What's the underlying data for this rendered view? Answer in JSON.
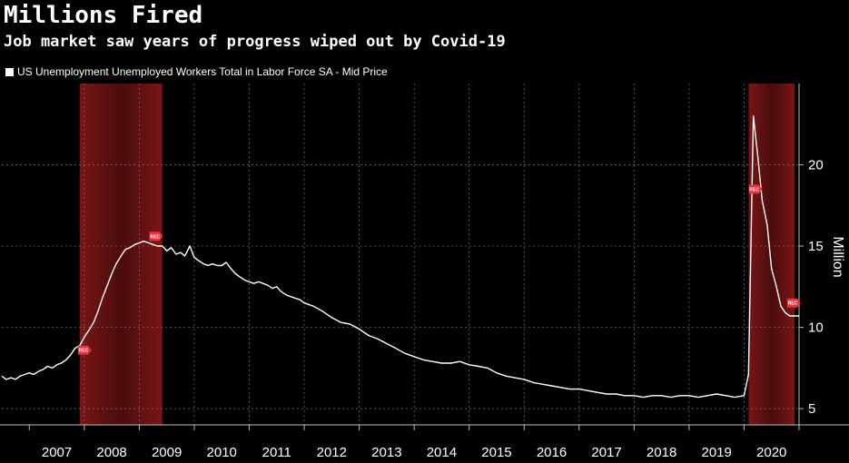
{
  "chart_data": {
    "type": "line",
    "title": "Millions Fired",
    "subtitle": "Job market saw years of progress wiped out by Covid-19",
    "ylabel": "Million",
    "ylim": [
      4,
      25
    ],
    "yticks": [
      5,
      10,
      15,
      20
    ],
    "xlim": [
      2006.5,
      2021.0
    ],
    "x_categories": [
      "2007",
      "2008",
      "2009",
      "2010",
      "2011",
      "2012",
      "2013",
      "2014",
      "2015",
      "2016",
      "2017",
      "2018",
      "2019",
      "2020"
    ],
    "grid": true,
    "legend": "top-left",
    "colors": {
      "line": "#ffffff",
      "recession": "#7a1a1a",
      "rec_marker": "#e8323c",
      "background": "#000000"
    },
    "recessions": [
      {
        "start": 2007.917,
        "end": 2009.417
      },
      {
        "start": 2020.083,
        "end": 2020.917
      }
    ],
    "rec_markers": [
      {
        "x": 2008.0,
        "y": 8.6,
        "label": "REC"
      },
      {
        "x": 2009.3,
        "y": 15.6,
        "label": "REC"
      },
      {
        "x": 2020.2,
        "y": 18.5,
        "label": "REC"
      },
      {
        "x": 2020.9,
        "y": 11.5,
        "label": "REC"
      }
    ],
    "series": [
      {
        "name": "US Unemployment Unemployed Workers Total in Labor Force SA - Mid Price",
        "x": [
          2006.5,
          2006.58,
          2006.67,
          2006.75,
          2006.83,
          2006.92,
          2007.0,
          2007.08,
          2007.17,
          2007.25,
          2007.33,
          2007.42,
          2007.5,
          2007.58,
          2007.67,
          2007.75,
          2007.83,
          2007.92,
          2008.0,
          2008.08,
          2008.17,
          2008.25,
          2008.33,
          2008.42,
          2008.5,
          2008.58,
          2008.67,
          2008.75,
          2008.83,
          2008.92,
          2009.0,
          2009.08,
          2009.17,
          2009.25,
          2009.33,
          2009.42,
          2009.5,
          2009.58,
          2009.67,
          2009.75,
          2009.83,
          2009.92,
          2010.0,
          2010.08,
          2010.17,
          2010.25,
          2010.33,
          2010.42,
          2010.5,
          2010.58,
          2010.67,
          2010.75,
          2010.83,
          2010.92,
          2011.0,
          2011.08,
          2011.17,
          2011.25,
          2011.33,
          2011.42,
          2011.5,
          2011.58,
          2011.67,
          2011.75,
          2011.83,
          2011.92,
          2012.0,
          2012.17,
          2012.33,
          2012.5,
          2012.67,
          2012.83,
          2013.0,
          2013.17,
          2013.33,
          2013.5,
          2013.67,
          2013.83,
          2014.0,
          2014.17,
          2014.33,
          2014.5,
          2014.67,
          2014.83,
          2015.0,
          2015.17,
          2015.33,
          2015.5,
          2015.67,
          2015.83,
          2016.0,
          2016.17,
          2016.33,
          2016.5,
          2016.67,
          2016.83,
          2017.0,
          2017.17,
          2017.33,
          2017.5,
          2017.67,
          2017.83,
          2018.0,
          2018.17,
          2018.33,
          2018.5,
          2018.67,
          2018.83,
          2019.0,
          2019.17,
          2019.33,
          2019.5,
          2019.67,
          2019.83,
          2020.0,
          2020.08,
          2020.17,
          2020.25,
          2020.33,
          2020.42,
          2020.5,
          2020.58,
          2020.67,
          2020.75,
          2020.83,
          2020.92,
          2021.0
        ],
        "values": [
          7.0,
          6.8,
          6.9,
          6.8,
          7.0,
          7.1,
          7.2,
          7.1,
          7.3,
          7.4,
          7.6,
          7.5,
          7.7,
          7.8,
          8.0,
          8.3,
          8.7,
          8.9,
          9.4,
          9.8,
          10.3,
          11.0,
          11.8,
          12.6,
          13.3,
          13.9,
          14.4,
          14.8,
          14.9,
          15.1,
          15.2,
          15.3,
          15.2,
          15.1,
          15.0,
          15.0,
          14.7,
          14.9,
          14.5,
          14.6,
          14.4,
          15.0,
          14.3,
          14.1,
          13.9,
          13.8,
          13.9,
          13.8,
          13.8,
          14.0,
          13.6,
          13.3,
          13.1,
          12.9,
          12.8,
          12.7,
          12.8,
          12.7,
          12.6,
          12.4,
          12.5,
          12.2,
          12.0,
          11.9,
          11.8,
          11.7,
          11.5,
          11.3,
          11.0,
          10.6,
          10.3,
          10.2,
          9.9,
          9.5,
          9.3,
          9.0,
          8.7,
          8.4,
          8.2,
          8.0,
          7.9,
          7.8,
          7.8,
          7.9,
          7.7,
          7.6,
          7.5,
          7.2,
          7.0,
          6.9,
          6.8,
          6.6,
          6.5,
          6.4,
          6.3,
          6.2,
          6.2,
          6.1,
          6.0,
          5.9,
          5.9,
          5.8,
          5.8,
          5.7,
          5.8,
          5.8,
          5.7,
          5.8,
          5.8,
          5.7,
          5.8,
          5.9,
          5.8,
          5.7,
          5.8,
          7.1,
          23.0,
          20.5,
          17.8,
          16.3,
          13.6,
          12.6,
          11.3,
          10.9,
          10.7,
          10.7,
          10.7
        ]
      }
    ]
  }
}
